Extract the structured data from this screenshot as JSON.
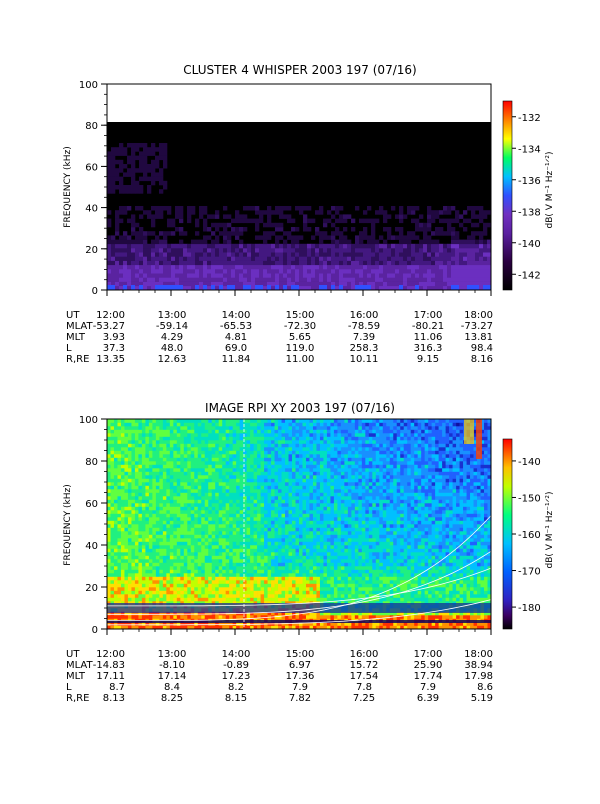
{
  "panels": [
    {
      "title": "CLUSTER 4 WHISPER 2003 197 (07/16)",
      "ylabel": "FREQUENCY (kHz)",
      "colorbar_label": "dB( V M⁻¹ Hz⁻¹ᐟ²)",
      "colorbar_ticks": [
        "-132",
        "-134",
        "-136",
        "-138",
        "-140",
        "-142"
      ],
      "ephemeris": {
        "rows": [
          {
            "label": "UT",
            "values": [
              "12:00",
              "13:00",
              "14:00",
              "15:00",
              "16:00",
              "17:00",
              "18:00"
            ]
          },
          {
            "label": "MLAT",
            "values": [
              "-53.27",
              "-59.14",
              "-65.53",
              "-72.30",
              "-78.59",
              "-80.21",
              "-73.27"
            ]
          },
          {
            "label": "MLT",
            "values": [
              "3.93",
              "4.29",
              "4.81",
              "5.65",
              "7.39",
              "11.06",
              "13.81"
            ]
          },
          {
            "label": "L",
            "values": [
              "37.3",
              "48.0",
              "69.0",
              "119.0",
              "258.3",
              "316.3",
              "98.4"
            ]
          },
          {
            "label": "R,RE",
            "values": [
              "13.35",
              "12.63",
              "11.84",
              "11.00",
              "10.11",
              "9.15",
              "8.16"
            ]
          }
        ]
      }
    },
    {
      "title": "IMAGE RPI XY 2003 197 (07/16)",
      "ylabel": "FREQUENCY (kHz)",
      "colorbar_label": "dB( V M⁻¹ Hz⁻¹ᐟ²)",
      "colorbar_ticks": [
        "-140",
        "-150",
        "-160",
        "-170",
        "-180"
      ],
      "ephemeris": {
        "rows": [
          {
            "label": "UT",
            "values": [
              "12:00",
              "13:00",
              "14:00",
              "15:00",
              "16:00",
              "17:00",
              "18:00"
            ]
          },
          {
            "label": "MLAT",
            "values": [
              "-14.83",
              "-8.10",
              "-0.89",
              "6.97",
              "15.72",
              "25.90",
              "38.94"
            ]
          },
          {
            "label": "MLT",
            "values": [
              "17.11",
              "17.14",
              "17.23",
              "17.36",
              "17.54",
              "17.74",
              "17.98"
            ]
          },
          {
            "label": "L",
            "values": [
              "8.7",
              "8.4",
              "8.2",
              "7.9",
              "7.8",
              "7.9",
              "8.6"
            ]
          },
          {
            "label": "R,RE",
            "values": [
              "8.13",
              "8.25",
              "8.15",
              "7.82",
              "7.25",
              "6.39",
              "5.19"
            ]
          }
        ]
      }
    }
  ],
  "chart_data": [
    {
      "type": "heatmap",
      "title": "CLUSTER 4 WHISPER 2003 197 (07/16)",
      "xlabel": "UT",
      "ylabel": "FREQUENCY (kHz)",
      "x_ticks": [
        "12:00",
        "13:00",
        "14:00",
        "15:00",
        "16:00",
        "17:00",
        "18:00"
      ],
      "y_ticks": [
        0,
        20,
        40,
        60,
        80,
        100
      ],
      "ylim": [
        0,
        100
      ],
      "data_max_frequency_khz": 80,
      "colorbar": {
        "label": "dB( V M⁻¹ Hz⁻¹ᐟ²)",
        "range": [
          -143,
          -131
        ],
        "ticks": [
          -132,
          -134,
          -136,
          -138,
          -140,
          -142
        ]
      },
      "colormap": [
        "#000000",
        "#2a0040",
        "#5a20a0",
        "#7030c0",
        "#9040d0",
        "#3050ff",
        "#00c0ff",
        "#00ff60",
        "#ffff00",
        "#ff8000",
        "#ff0000"
      ]
    },
    {
      "type": "heatmap",
      "title": "IMAGE RPI XY 2003 197 (07/16)",
      "xlabel": "UT",
      "ylabel": "FREQUENCY (kHz)",
      "x_ticks": [
        "12:00",
        "13:00",
        "14:00",
        "15:00",
        "16:00",
        "17:00",
        "18:00"
      ],
      "y_ticks": [
        0,
        20,
        40,
        60,
        80,
        100
      ],
      "ylim": [
        0,
        100
      ],
      "colorbar": {
        "label": "dB( V M⁻¹ Hz⁻¹ᐟ²)",
        "range": [
          -186,
          -134
        ],
        "ticks": [
          -140,
          -150,
          -160,
          -170,
          -180
        ]
      },
      "colormap": [
        "#000000",
        "#2a0040",
        "#5a20a0",
        "#7030c0",
        "#9040d0",
        "#3050ff",
        "#00c0ff",
        "#00ff60",
        "#ffff00",
        "#ff8000",
        "#ff0000"
      ]
    }
  ]
}
